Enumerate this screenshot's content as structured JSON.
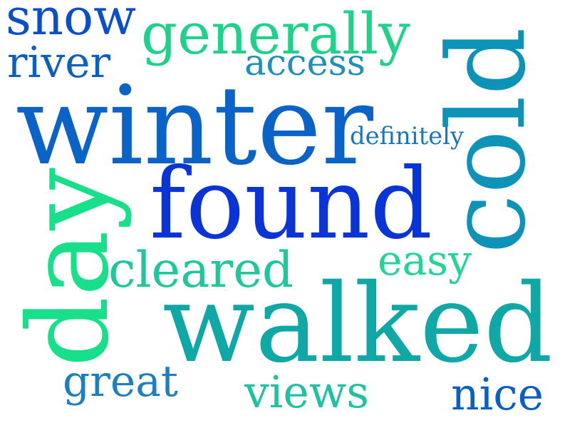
{
  "words": [
    {
      "id": "snow",
      "text": "snow",
      "color": "#0a4fc9"
    },
    {
      "id": "generally",
      "text": "generally",
      "color": "#1fd28a"
    },
    {
      "id": "river",
      "text": "river",
      "color": "#0b5fc0"
    },
    {
      "id": "access",
      "text": "access",
      "color": "#1f8fbd"
    },
    {
      "id": "winter",
      "text": "winter",
      "color": "#0b63c8"
    },
    {
      "id": "definitely",
      "text": "definitely",
      "color": "#1677be"
    },
    {
      "id": "cold",
      "text": "cold",
      "color": "#0e93b8"
    },
    {
      "id": "found",
      "text": "found",
      "color": "#0a34d6"
    },
    {
      "id": "day",
      "text": "day",
      "color": "#18e08a"
    },
    {
      "id": "cleared",
      "text": "cleared",
      "color": "#20c79a"
    },
    {
      "id": "easy",
      "text": "easy",
      "color": "#1fd697"
    },
    {
      "id": "walked",
      "text": "walked",
      "color": "#10a8a6"
    },
    {
      "id": "great",
      "text": "great",
      "color": "#1d7fbf"
    },
    {
      "id": "views",
      "text": "views",
      "color": "#1fc2a0"
    },
    {
      "id": "nice",
      "text": "nice",
      "color": "#0a5fc4"
    }
  ]
}
